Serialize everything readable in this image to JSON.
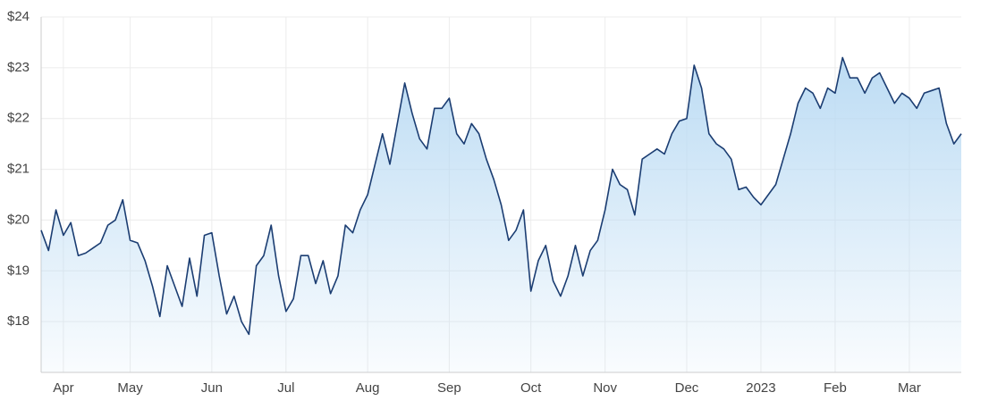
{
  "chart_data": {
    "type": "area",
    "categories": [
      null,
      null,
      null,
      "Apr",
      null,
      null,
      null,
      null,
      null,
      null,
      null,
      null,
      "May",
      null,
      null,
      null,
      null,
      null,
      null,
      null,
      null,
      null,
      null,
      "Jun",
      null,
      null,
      null,
      null,
      null,
      null,
      null,
      null,
      null,
      "Jul",
      null,
      null,
      null,
      null,
      null,
      null,
      null,
      null,
      null,
      null,
      "Aug",
      null,
      null,
      null,
      null,
      null,
      null,
      null,
      null,
      null,
      null,
      "Sep",
      null,
      null,
      null,
      null,
      null,
      null,
      null,
      null,
      null,
      null,
      "Oct",
      null,
      null,
      null,
      null,
      null,
      null,
      null,
      null,
      null,
      "Nov",
      null,
      null,
      null,
      null,
      null,
      null,
      null,
      null,
      null,
      null,
      "Dec",
      null,
      null,
      null,
      null,
      null,
      null,
      null,
      null,
      null,
      "2023",
      null,
      null,
      null,
      null,
      null,
      null,
      null,
      null,
      null,
      "Feb",
      null,
      null,
      null,
      null,
      null,
      null,
      null,
      null,
      null,
      "Mar",
      null,
      null,
      null,
      null,
      null,
      null,
      null
    ],
    "values": [
      19.8,
      19.4,
      20.2,
      19.7,
      19.95,
      19.3,
      19.35,
      19.45,
      19.55,
      19.9,
      20.0,
      20.4,
      19.6,
      19.55,
      19.2,
      18.7,
      18.1,
      19.1,
      18.7,
      18.3,
      19.25,
      18.5,
      19.7,
      19.75,
      18.9,
      18.15,
      18.5,
      18.0,
      17.75,
      19.1,
      19.3,
      19.9,
      18.9,
      18.2,
      18.45,
      19.3,
      19.3,
      18.75,
      19.2,
      18.55,
      18.9,
      19.9,
      19.75,
      20.2,
      20.5,
      21.1,
      21.7,
      21.1,
      21.9,
      22.7,
      22.1,
      21.6,
      21.4,
      22.2,
      22.2,
      22.4,
      21.7,
      21.5,
      21.9,
      21.7,
      21.2,
      20.8,
      20.3,
      19.6,
      19.8,
      20.2,
      18.6,
      19.2,
      19.5,
      18.8,
      18.5,
      18.9,
      19.5,
      18.9,
      19.4,
      19.6,
      20.2,
      21.0,
      20.7,
      20.6,
      20.1,
      21.2,
      21.3,
      21.4,
      21.3,
      21.7,
      21.95,
      22.0,
      23.05,
      22.6,
      21.7,
      21.5,
      21.4,
      21.2,
      20.6,
      20.65,
      20.45,
      20.3,
      20.5,
      20.7,
      21.2,
      21.7,
      22.3,
      22.6,
      22.5,
      22.2,
      22.6,
      22.5,
      23.2,
      22.8,
      22.8,
      22.5,
      22.8,
      22.9,
      22.6,
      22.3,
      22.5,
      22.4,
      22.2,
      22.5,
      22.55,
      22.6,
      21.9,
      21.5,
      21.7
    ],
    "color": "#1b3d72",
    "area_color": "#b9daf3",
    "ylim": [
      17,
      24
    ],
    "yticks": [
      {
        "value": 18,
        "label": "$18"
      },
      {
        "value": 19,
        "label": "$19"
      },
      {
        "value": 20,
        "label": "$20"
      },
      {
        "value": 21,
        "label": "$21"
      },
      {
        "value": 22,
        "label": "$22"
      },
      {
        "value": 23,
        "label": "$23"
      },
      {
        "value": 24,
        "label": "$24"
      }
    ],
    "grid": true
  }
}
